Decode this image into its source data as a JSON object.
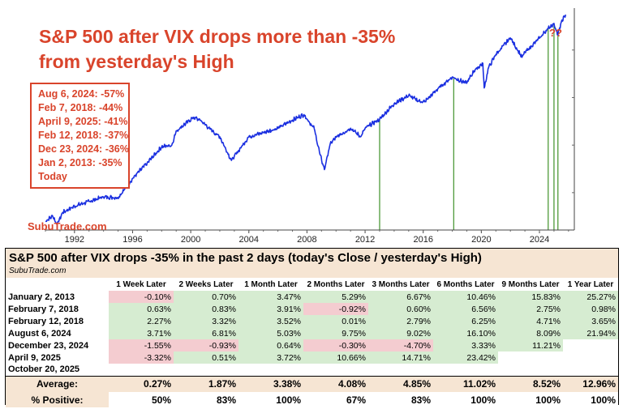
{
  "chart_data": {
    "type": "line",
    "title": "S&P 500 after VIX drops more than -35% from yesterday's High",
    "x_ticks": [
      "1992",
      "1996",
      "2000",
      "2004",
      "2008",
      "2012",
      "2016",
      "2020",
      "2024"
    ],
    "x_range": [
      1990.0,
      2026.4
    ],
    "y_scale": "log",
    "y_range": [
      290,
      7200
    ],
    "series": [
      {
        "points": [
          [
            1990.0,
            330
          ],
          [
            1990.5,
            355
          ],
          [
            1990.8,
            315
          ],
          [
            1991.2,
            375
          ],
          [
            1992.0,
            410
          ],
          [
            1993.0,
            440
          ],
          [
            1994.0,
            470
          ],
          [
            1995.0,
            465
          ],
          [
            1996.0,
            615
          ],
          [
            1997.0,
            770
          ],
          [
            1998.0,
            975
          ],
          [
            1998.7,
            1000
          ],
          [
            1999.0,
            1230
          ],
          [
            2000.2,
            1500
          ],
          [
            2000.7,
            1430
          ],
          [
            2001.5,
            1220
          ],
          [
            2002.0,
            1130
          ],
          [
            2002.8,
            800
          ],
          [
            2003.5,
            980
          ],
          [
            2004.0,
            1130
          ],
          [
            2005.0,
            1200
          ],
          [
            2006.0,
            1280
          ],
          [
            2007.0,
            1440
          ],
          [
            2007.8,
            1560
          ],
          [
            2008.5,
            1270
          ],
          [
            2008.9,
            870
          ],
          [
            2009.2,
            700
          ],
          [
            2009.6,
            1020
          ],
          [
            2010.0,
            1120
          ],
          [
            2011.0,
            1280
          ],
          [
            2011.7,
            1130
          ],
          [
            2012.0,
            1280
          ],
          [
            2013.0,
            1460
          ],
          [
            2014.0,
            1830
          ],
          [
            2015.0,
            2060
          ],
          [
            2015.7,
            1900
          ],
          [
            2016.1,
            1880
          ],
          [
            2017.0,
            2270
          ],
          [
            2018.0,
            2700
          ],
          [
            2018.98,
            2460
          ],
          [
            2019.5,
            2950
          ],
          [
            2020.1,
            3300
          ],
          [
            2020.2,
            2300
          ],
          [
            2020.5,
            3100
          ],
          [
            2021.0,
            3750
          ],
          [
            2022.0,
            4770
          ],
          [
            2022.8,
            3600
          ],
          [
            2023.0,
            3850
          ],
          [
            2024.0,
            4750
          ],
          [
            2024.6,
            5500
          ],
          [
            2025.0,
            5900
          ],
          [
            2025.27,
            4980
          ],
          [
            2025.5,
            6000
          ],
          [
            2025.8,
            6700
          ]
        ]
      }
    ],
    "event_years": [
      2013.0,
      2018.1,
      2024.6,
      2025.0,
      2025.27
    ],
    "annotations": [
      "??"
    ],
    "line_color": "#1a2fe0",
    "event_line_color": "#4f9a3a",
    "annotation_color": "#d9442b",
    "grid": false
  },
  "titles": {
    "main": "S&P 500 after VIX drops more than -35% from yesterday's High",
    "question": "??",
    "brand": "SubuTrade.com"
  },
  "events": [
    "Aug 6, 2024: -57%",
    "Feb 7, 2018: -44%",
    "April 9, 2025: -41%",
    "Feb 12, 2018: -37%",
    "Dec 23, 2024: -36%",
    "Jan 2, 2013: -35%",
    "Today"
  ],
  "table": {
    "title": "S&P 500 after VIX drops -35% in the past 2 days (today's Close / yesterday's High)",
    "source": "SubuTrade.com",
    "columns": [
      "1 Week Later",
      "2 Weeks Later",
      "1 Month Later",
      "2 Months Later",
      "3 Months Later",
      "6 Months Later",
      "9 Months Later",
      "1 Year Later"
    ],
    "rows": [
      {
        "label": "January 2, 2013",
        "values": [
          "-0.10%",
          "0.70%",
          "3.47%",
          "5.29%",
          "6.67%",
          "10.46%",
          "15.83%",
          "25.27%"
        ]
      },
      {
        "label": "February 7, 2018",
        "values": [
          "0.63%",
          "0.83%",
          "3.91%",
          "-0.92%",
          "0.60%",
          "6.56%",
          "2.75%",
          "0.98%"
        ]
      },
      {
        "label": "February 12, 2018",
        "values": [
          "2.27%",
          "3.32%",
          "3.52%",
          "0.01%",
          "2.79%",
          "6.25%",
          "4.71%",
          "3.65%"
        ]
      },
      {
        "label": "August 6, 2024",
        "values": [
          "3.71%",
          "6.81%",
          "5.03%",
          "9.75%",
          "9.02%",
          "16.10%",
          "8.09%",
          "21.94%"
        ]
      },
      {
        "label": "December 23, 2024",
        "values": [
          "-1.55%",
          "-0.93%",
          "0.64%",
          "-0.30%",
          "-4.70%",
          "3.33%",
          "11.21%",
          ""
        ]
      },
      {
        "label": "April 9, 2025",
        "values": [
          "-3.32%",
          "0.51%",
          "3.72%",
          "10.66%",
          "14.71%",
          "23.42%",
          "",
          ""
        ]
      },
      {
        "label": "October 20, 2025",
        "values": [
          "",
          "",
          "",
          "",
          "",
          "",
          "",
          ""
        ]
      }
    ],
    "average_label": "Average:",
    "average": [
      "0.27%",
      "1.87%",
      "3.38%",
      "4.08%",
      "4.85%",
      "11.02%",
      "8.52%",
      "12.96%"
    ],
    "positive_label": "% Positive:",
    "positive": [
      "50%",
      "83%",
      "100%",
      "67%",
      "83%",
      "100%",
      "100%",
      "100%"
    ]
  }
}
